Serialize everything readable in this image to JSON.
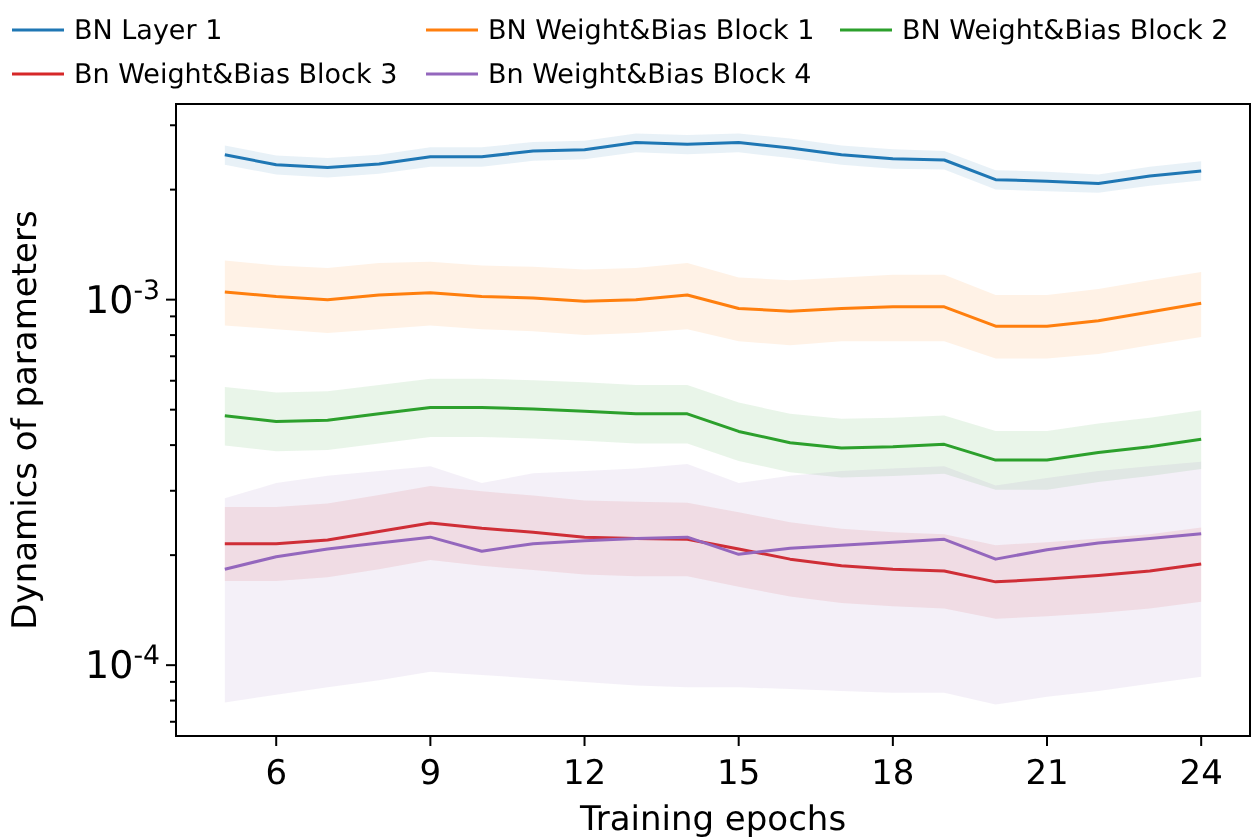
{
  "chart_data": {
    "type": "line",
    "xlabel": "Training epochs",
    "ylabel": "Dynamics of parameters",
    "log": "y",
    "grid": false,
    "legend": "top",
    "marker": "none",
    "line_style": "solid",
    "x": [
      5,
      6,
      7,
      8,
      9,
      10,
      11,
      12,
      13,
      14,
      15,
      16,
      17,
      18,
      19,
      20,
      21,
      22,
      23,
      24
    ],
    "xlim": [
      4.05,
      24.95
    ],
    "xticks": [
      6,
      9,
      12,
      15,
      18,
      21,
      24
    ],
    "ylim": [
      6.4e-05,
      0.00343
    ],
    "yticks": [
      {
        "value": 7e-05,
        "label": null
      },
      {
        "value": 8e-05,
        "label": null
      },
      {
        "value": 9e-05,
        "label": null
      },
      {
        "value": 0.0001,
        "label": "10$^{-4}$"
      },
      {
        "value": 0.0002,
        "label": null
      },
      {
        "value": 0.0003,
        "label": null
      },
      {
        "value": 0.0004,
        "label": null
      },
      {
        "value": 0.0005,
        "label": null
      },
      {
        "value": 0.0006,
        "label": null
      },
      {
        "value": 0.0007,
        "label": null
      },
      {
        "value": 0.0008,
        "label": null
      },
      {
        "value": 0.0009,
        "label": null
      },
      {
        "value": 0.001,
        "label": "10$^{-3}$"
      },
      {
        "value": 0.002,
        "label": null
      },
      {
        "value": 0.003,
        "label": null
      }
    ],
    "series": [
      {
        "name": "BN Layer 1",
        "color": "#1f77b4",
        "values": [
          0.00249,
          0.00234,
          0.0023,
          0.00235,
          0.00246,
          0.00246,
          0.00255,
          0.00257,
          0.00269,
          0.00266,
          0.00269,
          0.0026,
          0.00249,
          0.00243,
          0.00241,
          0.00213,
          0.00211,
          0.00208,
          0.00218,
          0.00225
        ],
        "upper": [
          0.00264,
          0.00248,
          0.00244,
          0.00249,
          0.00261,
          0.00261,
          0.0027,
          0.00272,
          0.00285,
          0.00282,
          0.00285,
          0.00276,
          0.00264,
          0.00258,
          0.00255,
          0.00226,
          0.00224,
          0.0022,
          0.00231,
          0.00239
        ],
        "lower": [
          0.00234,
          0.0022,
          0.00216,
          0.00221,
          0.00231,
          0.00231,
          0.0024,
          0.00242,
          0.00253,
          0.0025,
          0.00253,
          0.00244,
          0.00234,
          0.00228,
          0.00227,
          0.002,
          0.00198,
          0.00196,
          0.00205,
          0.00212
        ]
      },
      {
        "name": "BN Weight&Bias Block 1",
        "color": "#ff7f0e",
        "values": [
          0.00105,
          0.00102,
          0.001,
          0.00103,
          0.001045,
          0.00102,
          0.00101,
          0.00099,
          0.001,
          0.00103,
          0.000946,
          0.00093,
          0.000946,
          0.000956,
          0.000956,
          0.000846,
          0.000846,
          0.000875,
          0.000925,
          0.000978
        ],
        "upper": [
          0.00128,
          0.00124,
          0.00122,
          0.00126,
          0.00127,
          0.00124,
          0.00123,
          0.00121,
          0.00122,
          0.00126,
          0.00115,
          0.00113,
          0.00115,
          0.00117,
          0.00117,
          0.00103,
          0.00103,
          0.00107,
          0.00113,
          0.00119
        ],
        "lower": [
          0.00085,
          0.00083,
          0.00081,
          0.00083,
          0.00085,
          0.00083,
          0.00082,
          0.0008,
          0.00081,
          0.00083,
          0.00077,
          0.00075,
          0.00077,
          0.00077,
          0.00077,
          0.00069,
          0.00069,
          0.00071,
          0.00075,
          0.00079
        ]
      },
      {
        "name": "BN Weight&Bias Block 2",
        "color": "#2ca02c",
        "values": [
          0.000481,
          0.000464,
          0.000468,
          0.000487,
          0.000507,
          0.000507,
          0.000502,
          0.000495,
          0.000487,
          0.000487,
          0.000436,
          0.000406,
          0.000393,
          0.000396,
          0.000402,
          0.000364,
          0.000364,
          0.000382,
          0.000396,
          0.000415
        ],
        "upper": [
          0.000577,
          0.000557,
          0.000562,
          0.000584,
          0.000608,
          0.000608,
          0.000602,
          0.000594,
          0.000584,
          0.000584,
          0.000523,
          0.000487,
          0.000472,
          0.000475,
          0.000482,
          0.000437,
          0.000437,
          0.000458,
          0.000475,
          0.000498
        ],
        "lower": [
          0.000399,
          0.000385,
          0.000388,
          0.000404,
          0.000421,
          0.000421,
          0.000417,
          0.000411,
          0.000404,
          0.000404,
          0.000362,
          0.000337,
          0.000326,
          0.000329,
          0.000334,
          0.000302,
          0.000302,
          0.000317,
          0.000329,
          0.000344
        ]
      },
      {
        "name": "Bn Weight&Bias Block 3",
        "color": "#d62728",
        "values": [
          0.000215,
          0.000215,
          0.00022,
          0.000232,
          0.000245,
          0.000237,
          0.000231,
          0.000224,
          0.000222,
          0.000221,
          0.000208,
          0.000195,
          0.000187,
          0.000183,
          0.000181,
          0.000169,
          0.000172,
          0.000176,
          0.000181,
          0.000189
        ],
        "upper": [
          0.000271,
          0.000271,
          0.000277,
          0.000292,
          0.000309,
          0.000299,
          0.000291,
          0.000282,
          0.00028,
          0.000278,
          0.000262,
          0.000246,
          0.000236,
          0.000231,
          0.000228,
          0.000213,
          0.000217,
          0.000222,
          0.000228,
          0.000238
        ],
        "lower": [
          0.00017,
          0.00017,
          0.000174,
          0.000183,
          0.000194,
          0.000187,
          0.000182,
          0.000177,
          0.000175,
          0.000175,
          0.000164,
          0.000154,
          0.000148,
          0.000145,
          0.000143,
          0.000134,
          0.000136,
          0.000139,
          0.000143,
          0.000149
        ]
      },
      {
        "name": "Bn Weight&Bias Block 4",
        "color": "#9467bd",
        "values": [
          0.000183,
          0.000198,
          0.000208,
          0.000216,
          0.000224,
          0.000205,
          0.000215,
          0.000219,
          0.000222,
          0.000224,
          0.000201,
          0.000209,
          0.000213,
          0.000217,
          0.000221,
          0.000195,
          0.000207,
          0.000216,
          0.000222,
          0.000229
        ],
        "upper": [
          0.000286,
          0.000315,
          0.00033,
          0.00034,
          0.00035,
          0.000315,
          0.000335,
          0.00034,
          0.000345,
          0.000355,
          0.000315,
          0.00033,
          0.00034,
          0.000345,
          0.00035,
          0.00031,
          0.000325,
          0.00034,
          0.00035,
          0.00036
        ],
        "lower": [
          7.9e-05,
          8.3e-05,
          8.7e-05,
          9.1e-05,
          9.6e-05,
          9.4e-05,
          9.2e-05,
          9e-05,
          8.8e-05,
          8.7e-05,
          8.7e-05,
          8.6e-05,
          8.5e-05,
          8.4e-05,
          8.4e-05,
          7.8e-05,
          8.2e-05,
          8.5e-05,
          8.9e-05,
          9.3e-05
        ]
      }
    ]
  }
}
